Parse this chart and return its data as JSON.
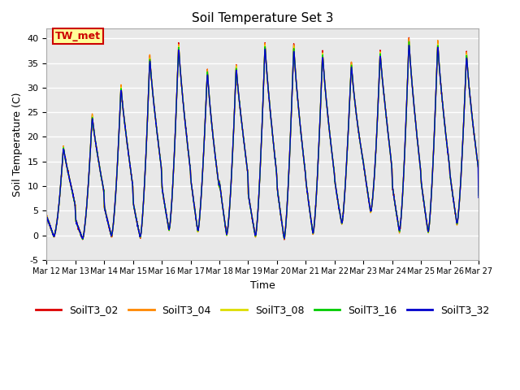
{
  "title": "Soil Temperature Set 3",
  "xlabel": "Time",
  "ylabel": "Soil Temperature (C)",
  "ylim": [
    -5,
    42
  ],
  "xlim": [
    0,
    360
  ],
  "fig_facecolor": "#ffffff",
  "plot_facecolor": "#e8e8e8",
  "series": {
    "SoilT3_02": {
      "color": "#dd0000",
      "lw": 1.0
    },
    "SoilT3_04": {
      "color": "#ff8800",
      "lw": 1.0
    },
    "SoilT3_08": {
      "color": "#dddd00",
      "lw": 1.0
    },
    "SoilT3_16": {
      "color": "#00cc00",
      "lw": 1.0
    },
    "SoilT3_32": {
      "color": "#0000cc",
      "lw": 1.0
    }
  },
  "annotation_text": "TW_met",
  "annotation_color": "#cc0000",
  "annotation_bg": "#ffff99",
  "annotation_border": "#cc0000",
  "xtick_labels": [
    "Mar 12",
    "Mar 13",
    "Mar 14",
    "Mar 15",
    "Mar 16",
    "Mar 17",
    "Mar 18",
    "Mar 19",
    "Mar 20",
    "Mar 21",
    "Mar 22",
    "Mar 23",
    "Mar 24",
    "Mar 25",
    "Mar 26",
    "Mar 27"
  ],
  "xtick_positions": [
    0,
    24,
    48,
    72,
    96,
    120,
    144,
    168,
    192,
    216,
    240,
    264,
    288,
    312,
    336,
    360
  ],
  "ytick_labels": [
    "-5",
    "0",
    "5",
    "10",
    "15",
    "20",
    "25",
    "30",
    "35",
    "40"
  ],
  "ytick_positions": [
    -5,
    0,
    5,
    10,
    15,
    20,
    25,
    30,
    35,
    40
  ],
  "grid_color": "#ffffff",
  "grid_lw": 1.0,
  "title_fontsize": 11,
  "label_fontsize": 9,
  "tick_fontsize": 8,
  "legend_fontsize": 9
}
